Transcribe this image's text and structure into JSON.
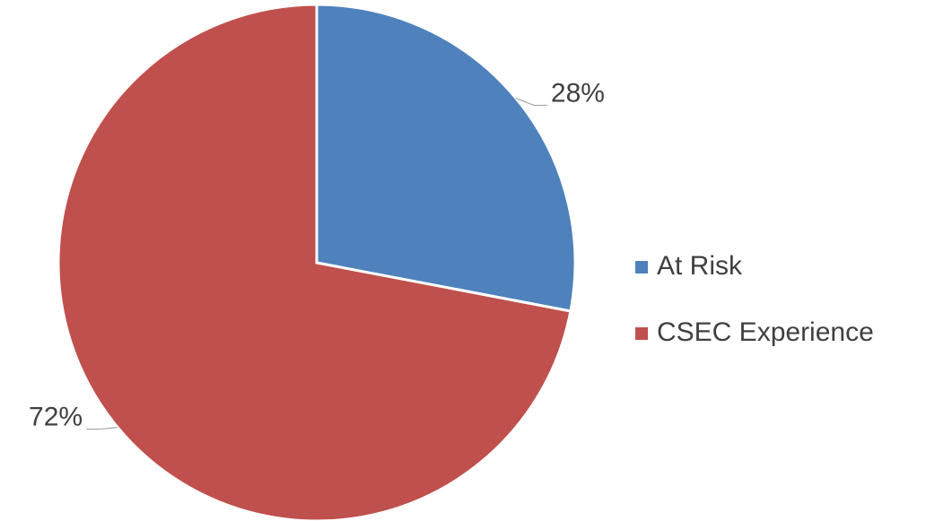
{
  "chart_data": {
    "type": "pie",
    "categories": [
      "At Risk",
      "CSEC Experience"
    ],
    "values": [
      28,
      72
    ],
    "value_labels": [
      "28%",
      "72%"
    ],
    "colors": [
      "#4f81bd",
      "#c0504d"
    ],
    "legend": "right"
  }
}
